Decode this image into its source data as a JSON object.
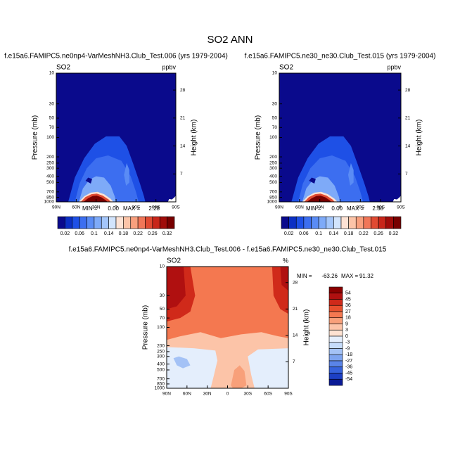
{
  "title": "SO2 ANN",
  "chart_data": [
    {
      "type": "contour",
      "title": "f.e15a6.FAMIPC5.ne0np4-VarMeshNH3.Club_Test.006 (yrs 1979-2004)",
      "field_label": "SO2",
      "units": "ppbv",
      "ylabel": "Pressure (mb)",
      "y2label": "Height (km)",
      "ylim": [
        1000,
        10
      ],
      "y_log": true,
      "yticks": [
        10,
        30,
        50,
        70,
        100,
        200,
        250,
        300,
        400,
        500,
        700,
        850,
        1000
      ],
      "y2lim": [
        0,
        32.24
      ],
      "y2ticks": [
        7,
        14,
        21,
        28
      ],
      "xlim": [
        90,
        -90
      ],
      "xticks": [
        {
          "value": 90,
          "label": "90N"
        },
        {
          "value": 60,
          "label": "60N"
        },
        {
          "value": 30,
          "label": "30N"
        },
        0,
        {
          "value": -30,
          "label": "30S"
        },
        {
          "value": -60,
          "label": "60S"
        },
        {
          "value": -90,
          "label": "90S"
        }
      ],
      "stats": {
        "min_label": "MIN =",
        "min": {
          "value": 0,
          "label": "0.00"
        },
        "max_label": "MAX =",
        "max": {
          "value": 2.28,
          "label": "2.28"
        }
      },
      "colorbar": {
        "orientation": "horizontal",
        "labels": [
          0.02,
          0.06,
          0.1,
          0.14,
          0.18,
          0.22,
          0.26,
          0.32
        ],
        "colors": [
          "#0a0a8c",
          "#0c30c4",
          "#1e50e6",
          "#3c6ef0",
          "#5a8cf5",
          "#7eaaf8",
          "#a4c6fa",
          "#d2e4fc",
          "#fde2d4",
          "#fcc4a8",
          "#f8a07e",
          "#f07658",
          "#e04a32",
          "#c8261a",
          "#a00c0a",
          "#780000"
        ]
      }
    },
    {
      "type": "contour",
      "title": "f.e15a6.FAMIPC5.ne30_ne30.Club_Test.015 (yrs 1979-2004)",
      "field_label": "SO2",
      "units": "ppbv",
      "ylabel": "Pressure (mb)",
      "y2label": "Height (km)",
      "ylim": [
        1000,
        10
      ],
      "y_log": true,
      "yticks": [
        10,
        30,
        50,
        70,
        100,
        200,
        250,
        300,
        400,
        500,
        700,
        850,
        1000
      ],
      "y2lim": [
        0,
        32.24
      ],
      "y2ticks": [
        7,
        14,
        21,
        28
      ],
      "xlim": [
        90,
        -90
      ],
      "xticks": [
        {
          "value": 90,
          "label": "90N"
        },
        {
          "value": 60,
          "label": "60N"
        },
        {
          "value": 30,
          "label": "30N"
        },
        0,
        {
          "value": -30,
          "label": "30S"
        },
        {
          "value": -60,
          "label": "60S"
        },
        {
          "value": -90,
          "label": "90S"
        }
      ],
      "stats": {
        "min_label": "MIN =",
        "min": {
          "value": 0,
          "label": "0.00"
        },
        "max_label": "MAX =",
        "max": {
          "value": 2.38,
          "label": "2.38"
        }
      },
      "colorbar": {
        "orientation": "horizontal",
        "labels": [
          0.02,
          0.06,
          0.1,
          0.14,
          0.18,
          0.22,
          0.26,
          0.32
        ],
        "colors": [
          "#0a0a8c",
          "#0c30c4",
          "#1e50e6",
          "#3c6ef0",
          "#5a8cf5",
          "#7eaaf8",
          "#a4c6fa",
          "#d2e4fc",
          "#fde2d4",
          "#fcc4a8",
          "#f8a07e",
          "#f07658",
          "#e04a32",
          "#c8261a",
          "#a00c0a",
          "#780000"
        ]
      }
    },
    {
      "type": "contour",
      "title": "f.e15a6.FAMIPC5.ne0np4-VarMeshNH3.Club_Test.006 - f.e15a6.FAMIPC5.ne30_ne30.Club_Test.015",
      "field_label": "SO2",
      "units": "%",
      "ylabel": "Pressure (mb)",
      "y2label": "Height (km)",
      "ylim": [
        1000,
        10
      ],
      "y_log": true,
      "yticks": [
        10,
        30,
        50,
        70,
        100,
        200,
        250,
        300,
        400,
        500,
        700,
        850,
        1000
      ],
      "y2lim": [
        0,
        32.24
      ],
      "y2ticks": [
        7,
        14,
        21,
        28
      ],
      "xlim": [
        90,
        -90
      ],
      "xticks": [
        {
          "value": 90,
          "label": "90N"
        },
        {
          "value": 60,
          "label": "60N"
        },
        {
          "value": 30,
          "label": "30N"
        },
        0,
        {
          "value": -30,
          "label": "30S"
        },
        {
          "value": -60,
          "label": "60S"
        },
        {
          "value": -90,
          "label": "90S"
        }
      ],
      "stats": {
        "min_label": "MIN =",
        "min": {
          "value": -63.26,
          "label": "-63.26"
        },
        "max_label": "MAX =",
        "max": {
          "value": 91.32,
          "label": "91.32"
        }
      },
      "colorbar": {
        "orientation": "vertical",
        "labels": [
          54,
          45,
          36,
          27,
          18,
          9,
          3,
          0,
          -3,
          -9,
          -18,
          -27,
          -36,
          -45,
          -54
        ],
        "colors": [
          "#8b0000",
          "#b01010",
          "#d02a1a",
          "#e8502e",
          "#f47850",
          "#f8a07a",
          "#fcc4a8",
          "#fde2d2",
          "#e4eefc",
          "#c6dcfa",
          "#a4c2f6",
          "#7ea4f0",
          "#5a84e8",
          "#3662dc",
          "#1c3fc4",
          "#0a1a96"
        ]
      }
    }
  ]
}
